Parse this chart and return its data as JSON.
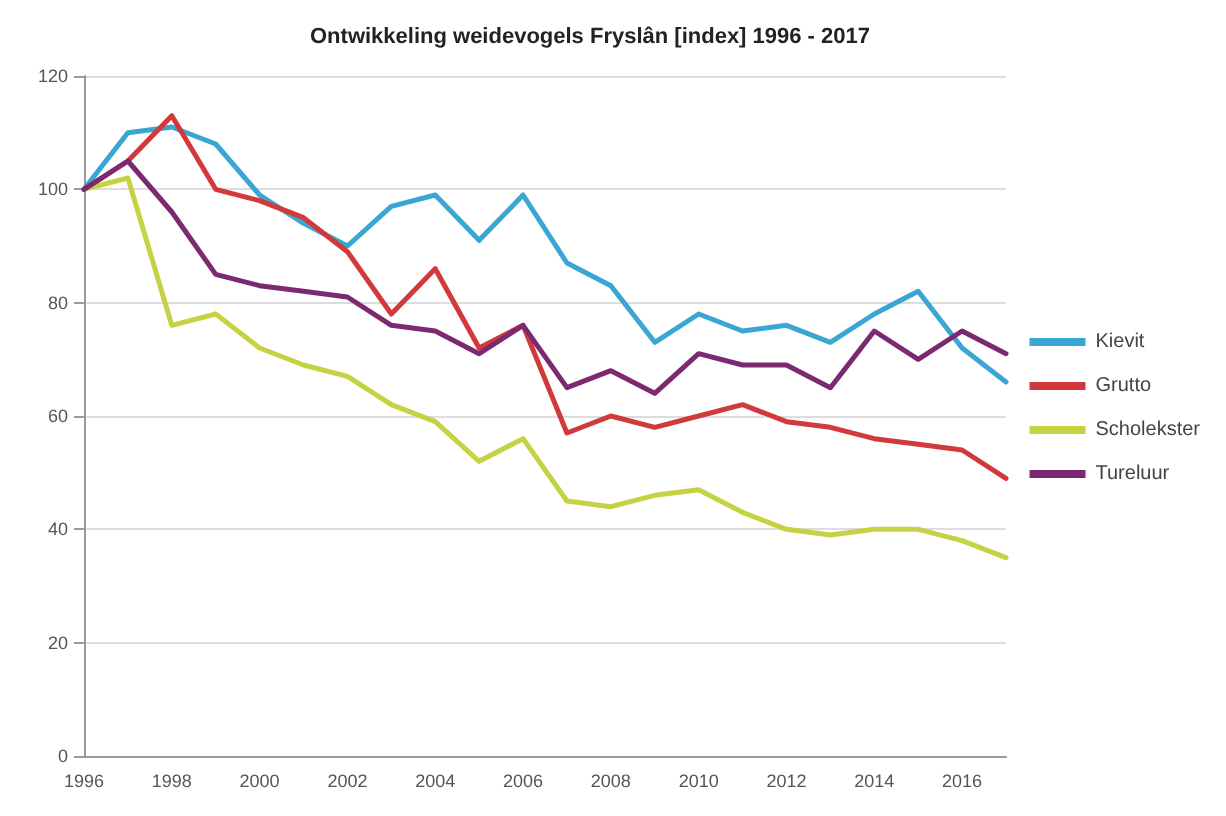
{
  "chart_data": {
    "type": "line",
    "title": "Ontwikkeling weidevogels Fryslân [index] 1996 - 2017",
    "categories": [
      "1996",
      null,
      "1998",
      null,
      "2000",
      null,
      "2002",
      null,
      "2004",
      null,
      "2006",
      null,
      "2008",
      null,
      "2010",
      null,
      "2012",
      null,
      "2014",
      null,
      "2016",
      null
    ],
    "series": [
      {
        "name": "Kievit",
        "color": "#3aa6d3",
        "values": [
          100,
          110,
          111,
          108,
          99,
          94,
          90,
          97,
          99,
          91,
          99,
          87,
          83,
          73,
          78,
          75,
          76,
          73,
          78,
          82,
          72,
          66
        ]
      },
      {
        "name": "Grutto",
        "color": "#d1393b",
        "values": [
          100,
          105,
          113,
          100,
          98,
          95,
          89,
          78,
          86,
          72,
          76,
          57,
          60,
          58,
          60,
          62,
          59,
          58,
          56,
          55,
          54,
          49
        ]
      },
      {
        "name": "Scholekster",
        "color": "#c4d244",
        "values": [
          100,
          102,
          76,
          78,
          72,
          69,
          67,
          62,
          59,
          52,
          56,
          45,
          44,
          46,
          47,
          43,
          40,
          39,
          40,
          40,
          38,
          35
        ]
      },
      {
        "name": "Tureluur",
        "color": "#7b2a6f",
        "values": [
          100,
          105,
          96,
          85,
          83,
          82,
          81,
          76,
          75,
          71,
          76,
          65,
          68,
          64,
          71,
          69,
          69,
          65,
          75,
          70,
          75,
          71
        ]
      }
    ],
    "ylim": [
      0,
      120
    ],
    "yticks": [
      0,
      20,
      40,
      60,
      80,
      100,
      120
    ],
    "grid": "y",
    "legend": "right",
    "marker": "none",
    "line_style": "solid"
  }
}
